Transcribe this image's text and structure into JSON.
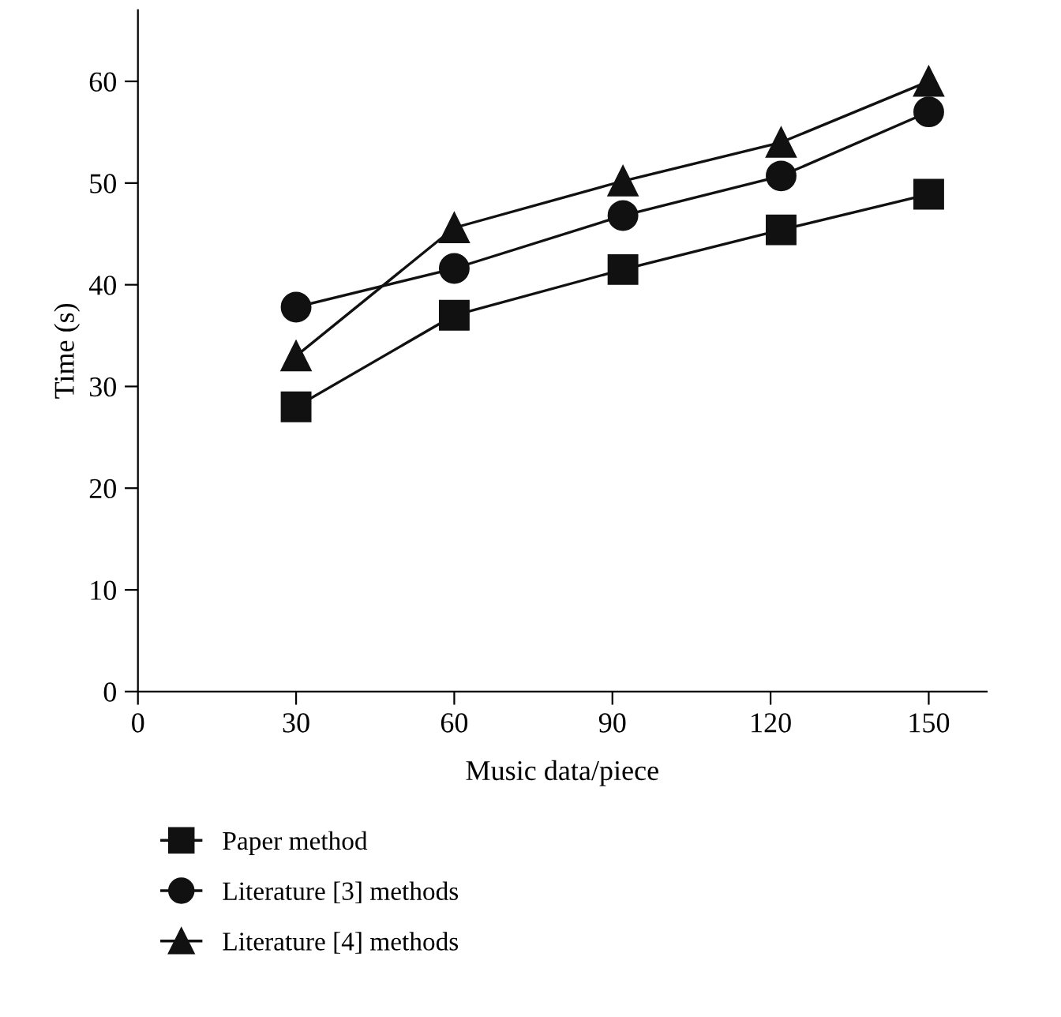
{
  "chart_data": {
    "type": "line",
    "xlabel": "Music data/piece",
    "ylabel": "Time (s)",
    "xlim": [
      0,
      161
    ],
    "ylim": [
      0,
      67
    ],
    "xticks": [
      0,
      30,
      60,
      90,
      120,
      150
    ],
    "yticks": [
      0,
      10,
      20,
      30,
      40,
      50,
      60
    ],
    "grid": false,
    "legend": "bottom",
    "series": [
      {
        "name": "Paper method",
        "color": "#111111",
        "marker": "square",
        "x": [
          30,
          60,
          92,
          122,
          150
        ],
        "values": [
          28,
          37,
          41.5,
          45.4,
          48.9
        ]
      },
      {
        "name": "Literature [3] methods",
        "color": "#111111",
        "marker": "circle",
        "x": [
          30,
          60,
          92,
          122,
          150
        ],
        "values": [
          37.8,
          41.6,
          46.8,
          50.7,
          57
        ]
      },
      {
        "name": "Literature [4] methods",
        "color": "#111111",
        "marker": "triangle",
        "x": [
          30,
          60,
          92,
          122,
          150
        ],
        "values": [
          33,
          45.6,
          50.2,
          54,
          60
        ]
      }
    ]
  }
}
